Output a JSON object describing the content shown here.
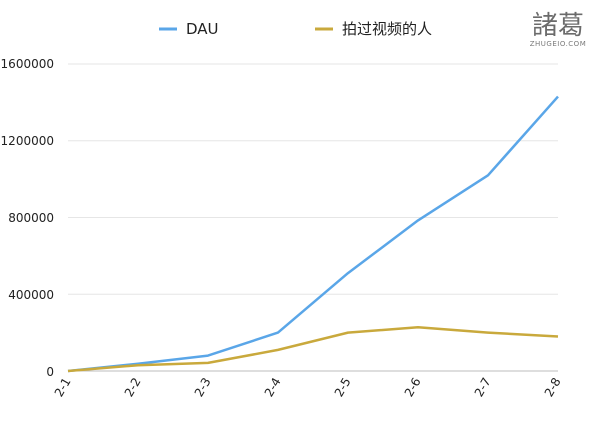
{
  "chart_data": {
    "type": "line",
    "categories": [
      "2-1",
      "2-2",
      "2-3",
      "2-4",
      "2-5",
      "2-6",
      "2-7",
      "2-8"
    ],
    "series": [
      {
        "name": "DAU",
        "color": "#5aa6e8",
        "values": [
          0,
          38000,
          80000,
          200000,
          510000,
          785000,
          1020000,
          1430000
        ]
      },
      {
        "name": "拍过视频的人",
        "color": "#c9a93c",
        "values": [
          0,
          30000,
          42000,
          110000,
          200000,
          228000,
          200000,
          180000
        ]
      }
    ],
    "yticks": [
      "0",
      "400000",
      "800000",
      "1200000",
      "1600000"
    ],
    "ylim": [
      0,
      1600000
    ],
    "grid": "horizontal",
    "legend": "top"
  },
  "watermark": {
    "logo_text": "諸葛",
    "domain": "ZHUGEIO.COM"
  }
}
